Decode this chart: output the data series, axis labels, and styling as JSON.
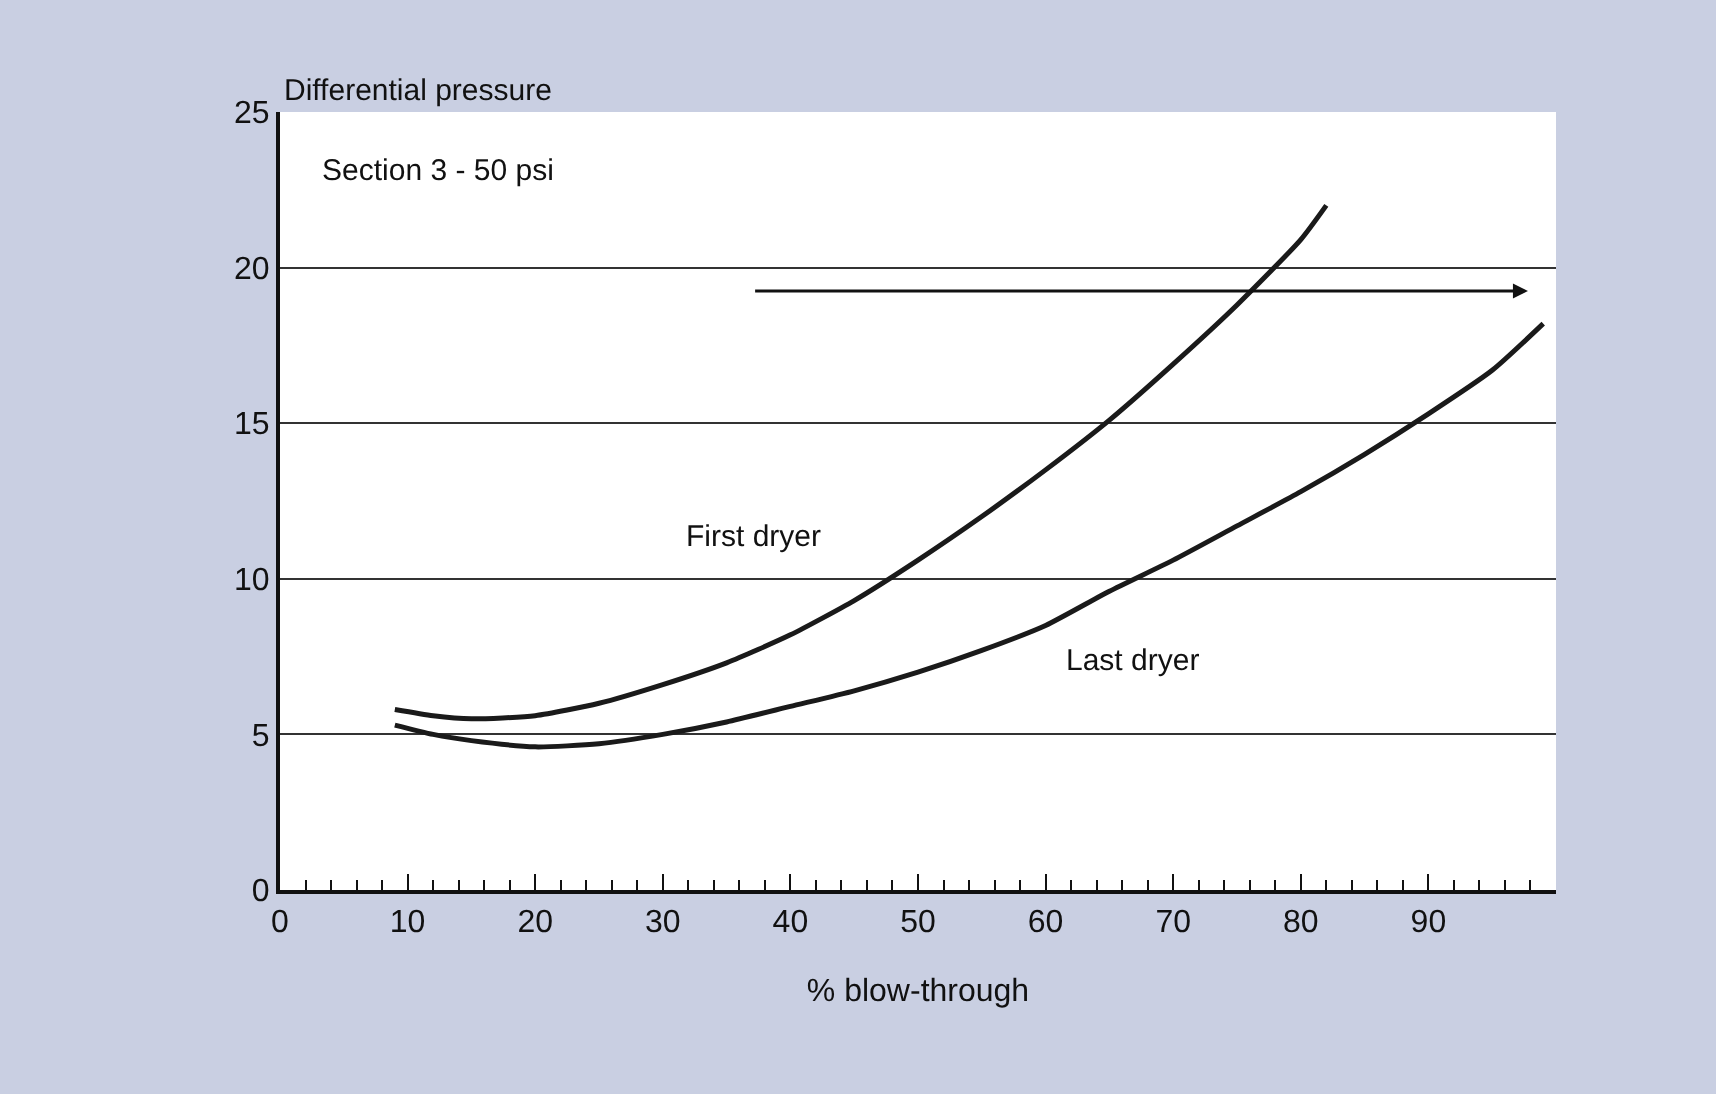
{
  "chart_data": {
    "type": "line",
    "ylabel": "Differential pressure",
    "xlabel": "% blow-through",
    "annotations": [
      "Section 3 - 50 psi"
    ],
    "xlim": [
      0,
      100
    ],
    "xticks": [
      0,
      10,
      20,
      30,
      40,
      50,
      60,
      70,
      80,
      90
    ],
    "ylim": [
      0,
      25
    ],
    "yticks": [
      0,
      5,
      10,
      15,
      20,
      25
    ],
    "grid": "y",
    "legend": false,
    "marker": "none",
    "line_style": "solid",
    "series": [
      {
        "name": "First dryer",
        "color": "#1a1a1a",
        "x": [
          9,
          12,
          15,
          20,
          25,
          30,
          35,
          40,
          45,
          50,
          55,
          60,
          65,
          70,
          75,
          80,
          82
        ],
        "values": [
          5.8,
          5.6,
          5.5,
          5.6,
          6.0,
          6.6,
          7.3,
          8.2,
          9.3,
          10.6,
          12.0,
          13.5,
          15.1,
          16.9,
          18.8,
          20.9,
          22.0
        ]
      },
      {
        "name": "Last dryer",
        "color": "#1a1a1a",
        "x": [
          9,
          12,
          15,
          20,
          25,
          30,
          35,
          40,
          45,
          50,
          55,
          60,
          65,
          70,
          75,
          80,
          85,
          90,
          95,
          99
        ],
        "values": [
          5.3,
          5.0,
          4.8,
          4.6,
          4.7,
          5.0,
          5.4,
          5.9,
          6.4,
          7.0,
          7.7,
          8.5,
          9.6,
          10.6,
          11.7,
          12.8,
          14.0,
          15.3,
          16.7,
          18.2
        ]
      }
    ]
  }
}
